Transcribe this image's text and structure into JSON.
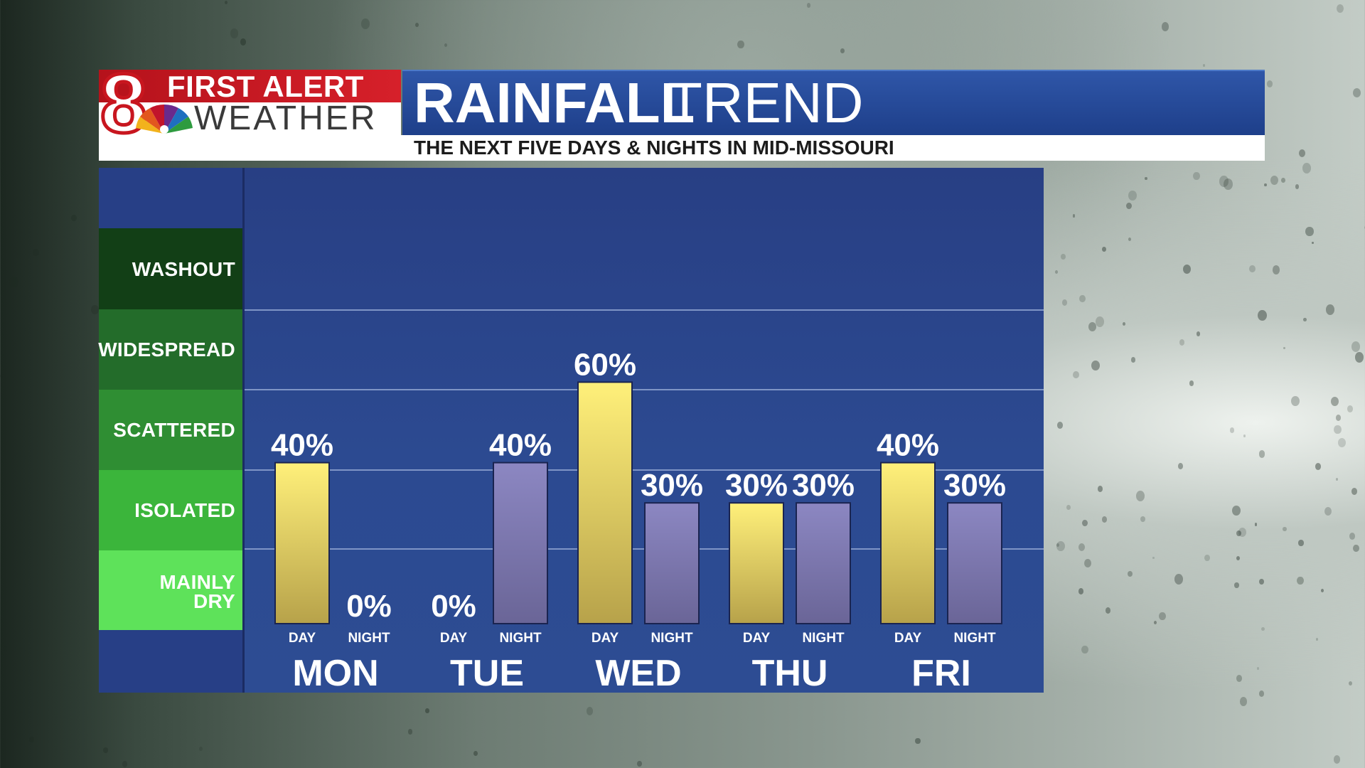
{
  "header": {
    "logo_number": "8",
    "logo_line1": "FIRST ALERT",
    "logo_line2": "WEATHER",
    "title_strong": "RAINFALL",
    "title_light": "TREND",
    "subtitle": "THE NEXT FIVE DAYS & NIGHTS IN MID-MISSOURI"
  },
  "levels": [
    {
      "label": "WASHOUT",
      "color": "#123f16"
    },
    {
      "label": "WIDESPREAD",
      "color": "#236c2a"
    },
    {
      "label": "SCATTERED",
      "color": "#2f8e33"
    },
    {
      "label": "ISOLATED",
      "color": "#3bb53b"
    },
    {
      "label": "MAINLY DRY",
      "color": "#5ee25a"
    }
  ],
  "colors": {
    "day_bar_top": "#fff07a",
    "day_bar_bottom": "#b7a24a",
    "night_bar_top": "#8c87c2",
    "night_bar_bottom": "#6a6597",
    "gridline": "#7f95c6"
  },
  "chart_data": {
    "type": "bar",
    "title": "RAINFALL TREND",
    "subtitle": "THE NEXT FIVE DAYS & NIGHTS IN MID-MISSOURI",
    "categories": [
      "MON",
      "TUE",
      "WED",
      "THU",
      "FRI"
    ],
    "period_labels": [
      "DAY",
      "NIGHT"
    ],
    "series": [
      {
        "name": "DAY",
        "values": [
          40,
          0,
          60,
          30,
          40
        ],
        "labels": [
          "40%",
          "0%",
          "60%",
          "30%",
          "40%"
        ]
      },
      {
        "name": "NIGHT",
        "values": [
          0,
          40,
          30,
          30,
          30
        ],
        "labels": [
          "0%",
          "40%",
          "30%",
          "30%",
          "30%"
        ]
      }
    ],
    "ylim": [
      0,
      100
    ],
    "unit": "%",
    "grid": true
  }
}
